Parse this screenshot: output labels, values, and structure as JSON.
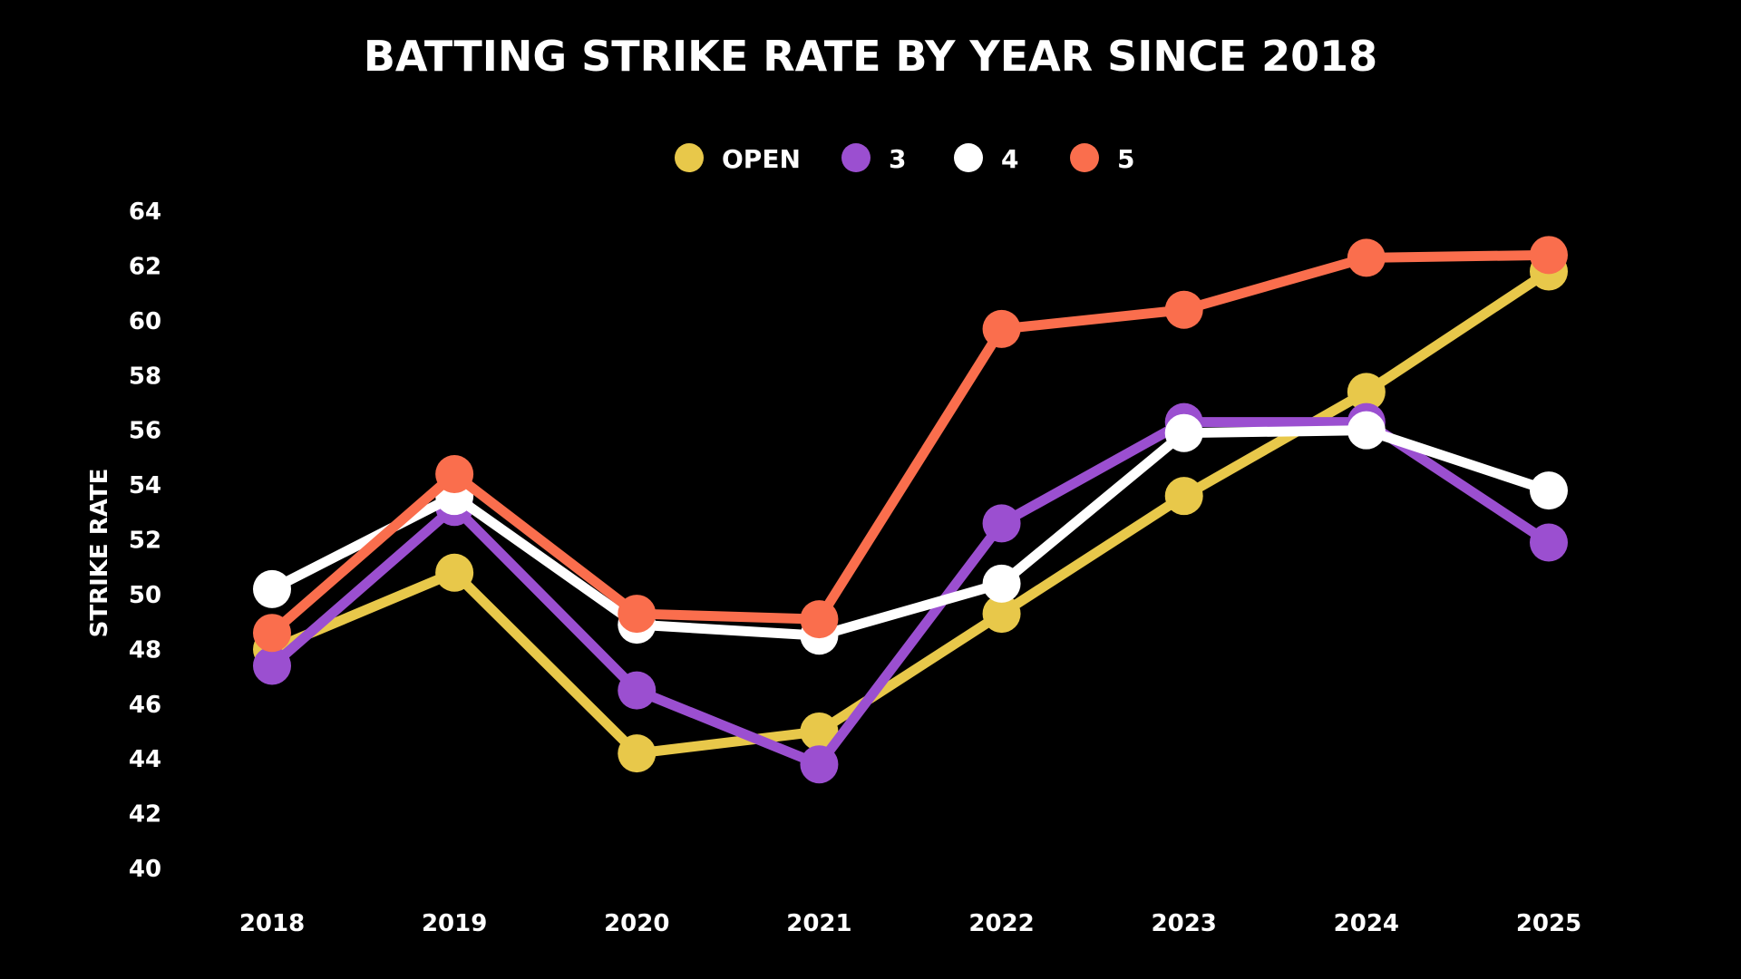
{
  "chart_data": {
    "type": "line",
    "title": "BATTING STRIKE RATE BY YEAR SINCE 2018",
    "xlabel": "",
    "ylabel": "STRIKE RATE",
    "categories": [
      "2018",
      "2019",
      "2020",
      "2021",
      "2022",
      "2023",
      "2024",
      "2025"
    ],
    "ylim": [
      40,
      64
    ],
    "yticks": [
      "40",
      "42",
      "44",
      "46",
      "48",
      "50",
      "52",
      "54",
      "56",
      "58",
      "60",
      "62",
      "64"
    ],
    "grid": false,
    "legend_position": "top-center",
    "series": [
      {
        "name": "OPEN",
        "color": "#e8c84a",
        "values": [
          48.0,
          50.8,
          44.2,
          45.0,
          49.3,
          53.6,
          57.4,
          61.8
        ]
      },
      {
        "name": "3",
        "color": "#9b4fd0",
        "values": [
          47.4,
          53.2,
          46.5,
          43.8,
          52.6,
          56.3,
          56.3,
          51.9
        ]
      },
      {
        "name": "4",
        "color": "#ffffff",
        "values": [
          50.2,
          53.6,
          48.9,
          48.5,
          50.4,
          55.9,
          56.0,
          53.8
        ]
      },
      {
        "name": "5",
        "color": "#fa6e4d",
        "values": [
          48.6,
          54.4,
          49.3,
          49.1,
          59.7,
          60.4,
          62.3,
          62.4
        ]
      }
    ]
  }
}
